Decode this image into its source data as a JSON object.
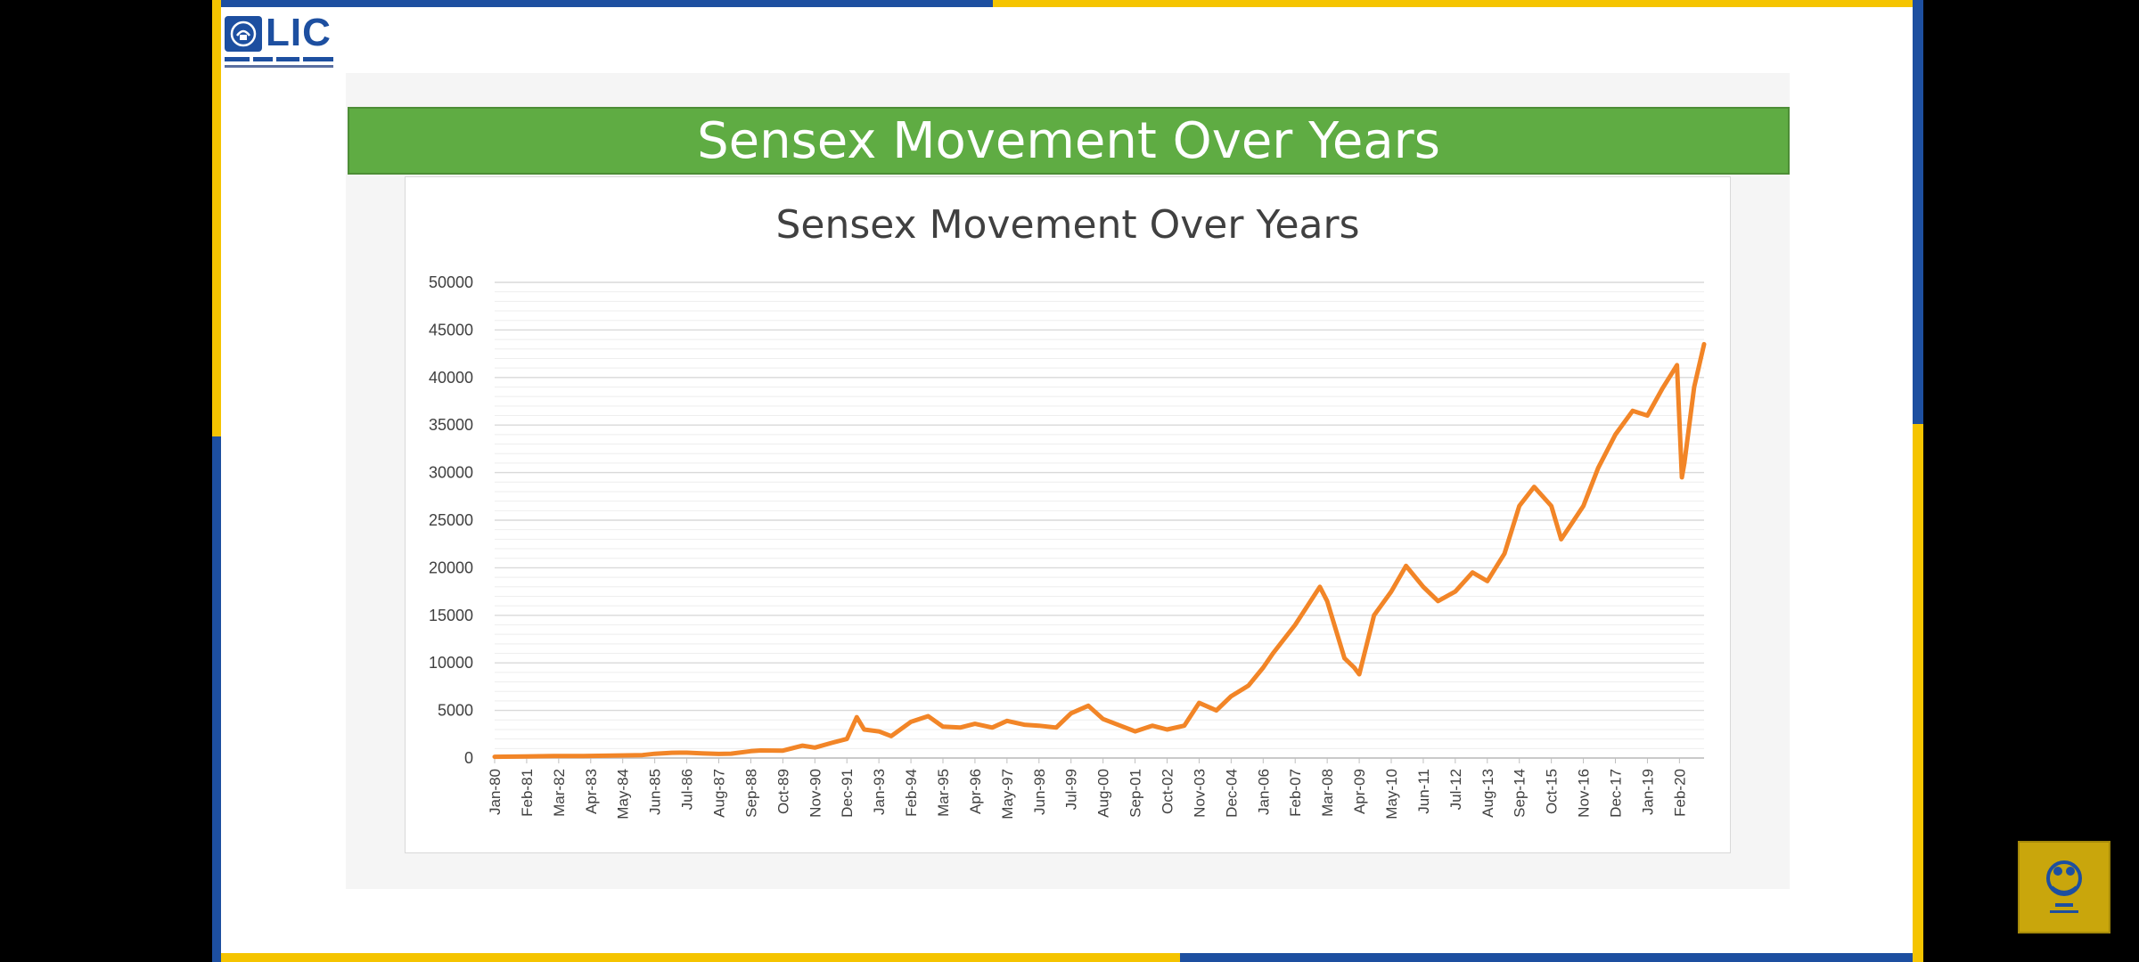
{
  "header": {
    "logo_text": "LIC",
    "banner_title": "Sensex Movement Over Years"
  },
  "colors": {
    "banner_green": "#5fac43",
    "line_orange": "#f28527",
    "border_blue": "#1d4fa0",
    "border_yellow": "#f5c400"
  },
  "icons": [
    "lic-emblem-icon",
    "channel-logo-icon"
  ],
  "chart_data": {
    "type": "line",
    "title": "Sensex Movement Over Years",
    "xlabel": "",
    "ylabel": "",
    "ylim": [
      0,
      50000
    ],
    "yticks": [
      0,
      5000,
      10000,
      15000,
      20000,
      25000,
      30000,
      35000,
      40000,
      45000,
      50000
    ],
    "xticks": [
      "Jan-80",
      "Feb-81",
      "Mar-82",
      "Apr-83",
      "May-84",
      "Jun-85",
      "Jul-86",
      "Aug-87",
      "Sep-88",
      "Oct-89",
      "Nov-90",
      "Dec-91",
      "Jan-93",
      "Feb-94",
      "Mar-95",
      "Apr-96",
      "May-97",
      "Jun-98",
      "Jul-99",
      "Aug-00",
      "Sep-01",
      "Oct-02",
      "Nov-03",
      "Dec-04",
      "Jan-06",
      "Feb-07",
      "Mar-08",
      "Apr-09",
      "May-10",
      "Jun-11",
      "Jul-12",
      "Aug-13",
      "Sep-14",
      "Oct-15",
      "Nov-16",
      "Dec-17",
      "Jan-19",
      "Feb-20"
    ],
    "grid": true,
    "series": [
      {
        "x": [
          "Jan-80",
          "Jan-81",
          "Jan-82",
          "Jan-83",
          "Jan-84",
          "Jan-85",
          "Jun-85",
          "Jan-86",
          "Jul-86",
          "Jan-87",
          "Aug-87",
          "Jan-88",
          "Sep-88",
          "Jan-89",
          "Oct-89",
          "Jun-90",
          "Nov-90",
          "Jun-91",
          "Dec-91",
          "Apr-92",
          "Jul-92",
          "Jan-93",
          "Jun-93",
          "Feb-94",
          "Sep-94",
          "Mar-95",
          "Oct-95",
          "Apr-96",
          "Nov-96",
          "May-97",
          "Dec-97",
          "Jun-98",
          "Jan-99",
          "Jul-99",
          "Feb-00",
          "Aug-00",
          "Mar-01",
          "Sep-01",
          "Apr-02",
          "Oct-02",
          "May-03",
          "Nov-03",
          "Jun-04",
          "Dec-04",
          "Jul-05",
          "Jan-06",
          "May-06",
          "Feb-07",
          "Dec-07",
          "Mar-08",
          "Oct-08",
          "Feb-09",
          "Apr-09",
          "Oct-09",
          "May-10",
          "Nov-10",
          "Jun-11",
          "Dec-11",
          "Jul-12",
          "Feb-13",
          "Aug-13",
          "Mar-14",
          "Sep-14",
          "Mar-15",
          "Oct-15",
          "Feb-16",
          "Nov-16",
          "May-17",
          "Dec-17",
          "Jul-18",
          "Jan-19",
          "Jul-19",
          "Jan-20",
          "Mar-20",
          "Apr-20",
          "Aug-20",
          "Dec-20"
        ],
        "values": [
          130,
          170,
          220,
          210,
          260,
          310,
          450,
          550,
          560,
          500,
          430,
          460,
          720,
          800,
          780,
          1300,
          1100,
          1600,
          2000,
          4300,
          3000,
          2800,
          2300,
          3800,
          4400,
          3300,
          3200,
          3600,
          3200,
          3900,
          3500,
          3400,
          3200,
          4700,
          5500,
          4100,
          3400,
          2800,
          3400,
          3000,
          3400,
          5800,
          5000,
          6500,
          7600,
          9500,
          11000,
          14000,
          18000,
          16500,
          10500,
          9500,
          8800,
          15000,
          17500,
          20200,
          18000,
          16500,
          17500,
          19500,
          18600,
          21500,
          26500,
          28500,
          26500,
          23000,
          26500,
          30500,
          34000,
          36500,
          36000,
          38800,
          41300,
          29500,
          31000,
          39000,
          43500
        ]
      }
    ]
  }
}
